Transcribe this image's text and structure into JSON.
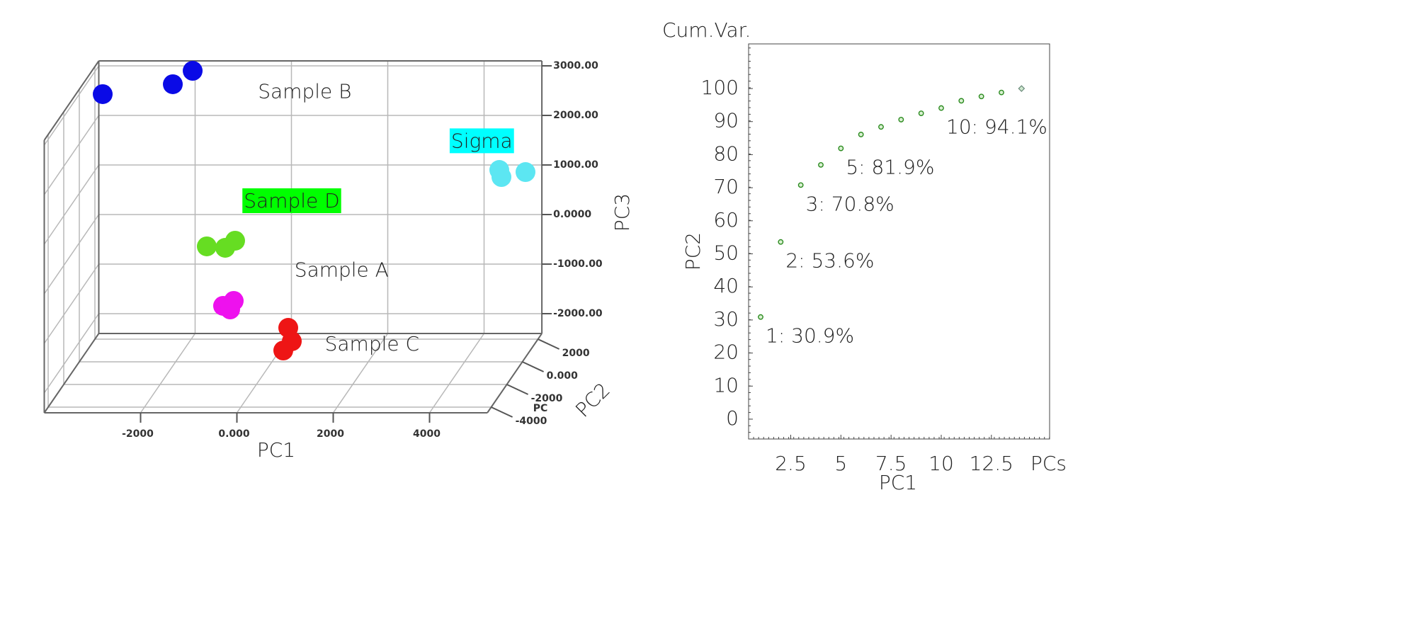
{
  "chart_data": [
    {
      "type": "scatter3d",
      "xlabel": "PC1",
      "ylabel": "PC2",
      "zlabel": "PC3",
      "xlim": [
        -4000,
        5200
      ],
      "ylim": [
        -4500,
        2500
      ],
      "zlim": [
        -2400,
        3100
      ],
      "xticks": [
        -2000,
        {
          "value": 0,
          "label": "0.000"
        },
        2000,
        4000
      ],
      "yticks": [
        2000,
        {
          "value": 0,
          "label": "0.000"
        },
        -2000,
        -4000
      ],
      "zticks": [
        {
          "value": 3000,
          "label": "3000.00"
        },
        {
          "value": 2000,
          "label": "2000.00"
        },
        {
          "value": 1000,
          "label": "1000.00"
        },
        {
          "value": 0,
          "label": "0.0000"
        },
        {
          "value": -1000,
          "label": "-1000.00"
        },
        {
          "value": -2000,
          "label": "-2000.00"
        }
      ],
      "grid": true,
      "annotations": [
        "PC"
      ],
      "series": [
        {
          "name": "Sample B",
          "color": "#0a0ae6",
          "x": [
            -3838,
            -2382,
            -1970
          ],
          "y": [
            2000,
            2000,
            2000
          ],
          "z": [
            2543,
            2743,
            3014
          ]
        },
        {
          "name": "Sigma",
          "color": "#5ce6f2",
          "label_background": "#00ffff",
          "x": [
            4397,
            4441,
            4941
          ],
          "y": [
            2000,
            2000,
            2000
          ],
          "z": [
            1014,
            871,
            971
          ]
        },
        {
          "name": "Sample D",
          "color": "#66dd22",
          "label_background": "#00ff00",
          "x": [
            -1353,
            -971,
            -765
          ],
          "y": [
            0,
            0,
            0
          ],
          "z": [
            -71,
            -100,
            43
          ]
        },
        {
          "name": "Sample A",
          "color": "#ee11ee",
          "x": [
            -1015,
            -794,
            -868
          ],
          "y": [
            0,
            0,
            0
          ],
          "z": [
            -1271,
            -1171,
            -1343
          ]
        },
        {
          "name": "Sample C",
          "color": "#ee1515",
          "x": [
            500,
            574,
            397
          ],
          "y": [
            -1000,
            -1000,
            -1000
          ],
          "z": [
            -1486,
            -1757,
            -1943
          ]
        }
      ]
    },
    {
      "type": "scatter",
      "title": "Cum.Var.",
      "xlabel": "PC1",
      "ylabel": "PC2",
      "x_unit": "PCs",
      "xlim": [
        0.4,
        15.4
      ],
      "ylim": [
        -6,
        113.5
      ],
      "xticks": [
        2.5,
        5,
        7.5,
        10,
        12.5
      ],
      "yticks": [
        0,
        10,
        20,
        30,
        40,
        50,
        60,
        70,
        80,
        90,
        100
      ],
      "series": [
        {
          "color": "#2a8a1e",
          "x": [
            1,
            2,
            3,
            4,
            5,
            6,
            7,
            8,
            9,
            10,
            11,
            12,
            13,
            14
          ],
          "values": [
            30.9,
            53.6,
            70.8,
            76.9,
            81.9,
            86.1,
            88.4,
            90.6,
            92.5,
            94.1,
            96.3,
            97.6,
            98.8,
            100
          ],
          "value_labels": [
            "1: 30.9%",
            "2: 53.6%",
            "3: 70.8%",
            null,
            "5: 81.9%",
            null,
            null,
            null,
            null,
            "10: 94.1%",
            null,
            null,
            null,
            null
          ]
        }
      ]
    }
  ]
}
